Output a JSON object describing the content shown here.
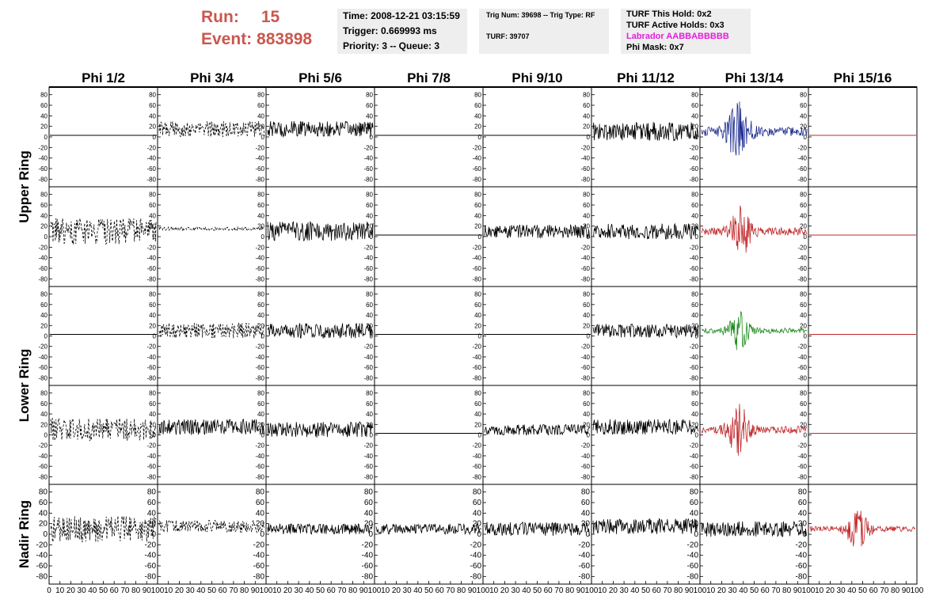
{
  "header": {
    "run_label": "Run:",
    "run_value": "15",
    "event_label": "Event:",
    "event_value": "883898"
  },
  "info_box_1": {
    "time": "Time: 2008-12-21 03:15:59",
    "trigger": "Trigger: 0.669993 ms",
    "priority": "Priority: 3 -- Queue: 3"
  },
  "info_box_2": {
    "trig": "Trig Num: 39698 -- Trig Type: RF",
    "turf": "TURF: 39707"
  },
  "info_box_3": {
    "hold": "TURF This Hold: 0x2",
    "active": "TURF Active Holds: 0x3",
    "labrador": "Labrador AABBABBBBB",
    "phimask": "Phi Mask: 0x7"
  },
  "colors": {
    "header_red": "#c9584f",
    "labrador_magenta": "#e41ddc",
    "trace_black": "#000000",
    "trace_red": "#c0282a",
    "trace_blue": "#1b2a8f",
    "trace_green": "#1f8a1f"
  },
  "chart_data": {
    "type": "line",
    "columns": [
      "Phi 1/2",
      "Phi 3/4",
      "Phi 5/6",
      "Phi 7/8",
      "Phi 9/10",
      "Phi 11/12",
      "Phi 13/14",
      "Phi 15/16"
    ],
    "ring_labels": [
      {
        "label": "Upper Ring",
        "rows": [
          0,
          1
        ]
      },
      {
        "label": "Lower Ring",
        "rows": [
          2,
          3
        ]
      },
      {
        "label": "Nadir Ring",
        "rows": [
          4
        ]
      }
    ],
    "ylim": [
      -90,
      90
    ],
    "yticks": [
      -80,
      -60,
      -40,
      -20,
      0,
      20,
      40,
      60,
      80
    ],
    "nadir_ylim": [
      -90,
      90
    ],
    "nadir_yticks": [
      -80,
      -60,
      -40,
      -20,
      0,
      20,
      40,
      60,
      80
    ],
    "xlim": [
      0,
      100
    ],
    "xticks": [
      0,
      10,
      20,
      30,
      40,
      50,
      60,
      70,
      80,
      90,
      100
    ],
    "cells": [
      [
        {
          "style": "flat",
          "color": "black",
          "offset": 3
        },
        {
          "style": "dashed",
          "color": "black",
          "offset": 15,
          "amp": 15
        },
        {
          "style": "solid",
          "color": "black",
          "offset": 15,
          "amp": 15
        },
        {
          "style": "flat",
          "color": "black",
          "offset": 3
        },
        {
          "style": "flat",
          "color": "black",
          "offset": 3
        },
        {
          "style": "solid",
          "color": "black",
          "offset": 10,
          "amp": 18
        },
        {
          "style": "solid",
          "color": "blue",
          "offset": 10,
          "amp": 25,
          "burst": 35
        },
        {
          "style": "flat",
          "color": "red",
          "offset": 3
        }
      ],
      [
        {
          "style": "dashed",
          "color": "black",
          "offset": 10,
          "amp": 25
        },
        {
          "style": "dashed",
          "color": "black",
          "offset": 15,
          "amp": 3
        },
        {
          "style": "solid",
          "color": "black",
          "offset": 10,
          "amp": 18
        },
        {
          "style": "flat",
          "color": "black",
          "offset": 3
        },
        {
          "style": "solid",
          "color": "black",
          "offset": 10,
          "amp": 13
        },
        {
          "style": "solid",
          "color": "black",
          "offset": 10,
          "amp": 15
        },
        {
          "style": "solid",
          "color": "red",
          "offset": 10,
          "amp": 20,
          "burst": 37
        },
        {
          "style": "flat",
          "color": "red",
          "offset": 3
        }
      ],
      [
        {
          "style": "flat",
          "color": "black",
          "offset": 3
        },
        {
          "style": "dashed",
          "color": "black",
          "offset": 10,
          "amp": 15
        },
        {
          "style": "solid",
          "color": "black",
          "offset": 10,
          "amp": 15
        },
        {
          "style": "flat",
          "color": "black",
          "offset": 3
        },
        {
          "style": "flat",
          "color": "black",
          "offset": 3
        },
        {
          "style": "solid",
          "color": "black",
          "offset": 10,
          "amp": 13
        },
        {
          "style": "solid",
          "color": "green",
          "offset": 10,
          "amp": 15,
          "burst": 35
        },
        {
          "style": "flat",
          "color": "red",
          "offset": 3
        }
      ],
      [
        {
          "style": "dashed",
          "color": "black",
          "offset": 10,
          "amp": 22
        },
        {
          "style": "solid",
          "color": "black",
          "offset": 15,
          "amp": 15
        },
        {
          "style": "solid",
          "color": "black",
          "offset": 10,
          "amp": 15
        },
        {
          "style": "flat",
          "color": "black",
          "offset": 3
        },
        {
          "style": "solid",
          "color": "black",
          "offset": 10,
          "amp": 10
        },
        {
          "style": "solid",
          "color": "black",
          "offset": 15,
          "amp": 15
        },
        {
          "style": "solid",
          "color": "red",
          "offset": 10,
          "amp": 20,
          "burst": 35
        },
        {
          "style": "flat",
          "color": "red",
          "offset": 3
        }
      ],
      [
        {
          "style": "dashed",
          "color": "black",
          "offset": 10,
          "amp": 25
        },
        {
          "style": "dashed",
          "color": "black",
          "offset": 15,
          "amp": 12
        },
        {
          "style": "solid",
          "color": "black",
          "offset": 10,
          "amp": 10
        },
        {
          "style": "solid",
          "color": "black",
          "offset": 10,
          "amp": 10
        },
        {
          "style": "solid",
          "color": "black",
          "offset": 10,
          "amp": 13
        },
        {
          "style": "solid",
          "color": "black",
          "offset": 15,
          "amp": 15
        },
        {
          "style": "solid",
          "color": "black",
          "offset": 10,
          "amp": 15
        },
        {
          "style": "solid",
          "color": "red",
          "offset": 10,
          "amp": 15,
          "burst": 45
        }
      ]
    ]
  }
}
